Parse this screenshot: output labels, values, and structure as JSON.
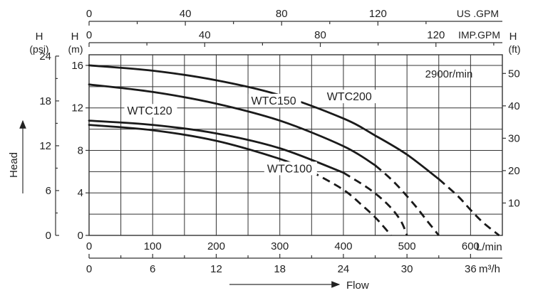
{
  "chart_data": {
    "type": "line",
    "title": "",
    "annotation": "2900r/min",
    "xlim": [
      0,
      650
    ],
    "ylim": [
      0,
      17
    ],
    "x_primary": {
      "unit": "L/min",
      "ticks": [
        0,
        100,
        200,
        300,
        400,
        500,
        600
      ]
    },
    "x_secondary_bottom": {
      "unit": "m³/h",
      "ticks": [
        0,
        6,
        12,
        18,
        24,
        30,
        36
      ]
    },
    "x_top_us": {
      "unit": "US .GPM",
      "ticks": [
        0,
        40,
        80,
        120
      ]
    },
    "x_top_imp": {
      "unit": "IMP.GPM",
      "ticks": [
        0,
        40,
        80,
        120
      ]
    },
    "y_primary": {
      "label_top": "H",
      "unit": "(m)",
      "ticks": [
        0,
        4,
        8,
        12,
        16
      ]
    },
    "y_left_psi": {
      "label_top": "H",
      "unit": "(psi)",
      "ticks": [
        0,
        6,
        12,
        18,
        24
      ]
    },
    "y_right_ft": {
      "label_top": "H",
      "unit": "(ft)",
      "ticks": [
        10,
        20,
        30,
        40,
        50
      ]
    },
    "xlabel": "Flow",
    "ylabel": "Head",
    "grid": true,
    "series": [
      {
        "name": "WTC200",
        "x": [
          0,
          100,
          200,
          300,
          400,
          450,
          500,
          550,
          580,
          600,
          620,
          645
        ],
        "y": [
          16,
          15.5,
          14.6,
          13.2,
          11.0,
          9.4,
          7.6,
          5.3,
          3.7,
          2.4,
          1.2,
          0
        ],
        "solid_until": 550
      },
      {
        "name": "WTC150",
        "x": [
          0,
          100,
          200,
          300,
          400,
          450,
          480,
          510,
          530,
          550
        ],
        "y": [
          14.2,
          13.5,
          12.4,
          10.8,
          8.4,
          6.6,
          5.0,
          3.0,
          1.5,
          0
        ],
        "solid_until": 450
      },
      {
        "name": "WTC120",
        "x": [
          0,
          100,
          200,
          300,
          400,
          440,
          470,
          490,
          500
        ],
        "y": [
          10.8,
          10.4,
          9.6,
          8.2,
          5.9,
          4.4,
          2.9,
          1.4,
          0
        ],
        "solid_until": 400
      },
      {
        "name": "WTC100",
        "x": [
          0,
          100,
          200,
          300,
          350,
          400,
          430,
          450,
          465,
          475
        ],
        "y": [
          10.4,
          9.9,
          8.9,
          7.2,
          6.0,
          4.3,
          2.8,
          1.7,
          0.7,
          0
        ],
        "solid_until": 350
      }
    ]
  }
}
